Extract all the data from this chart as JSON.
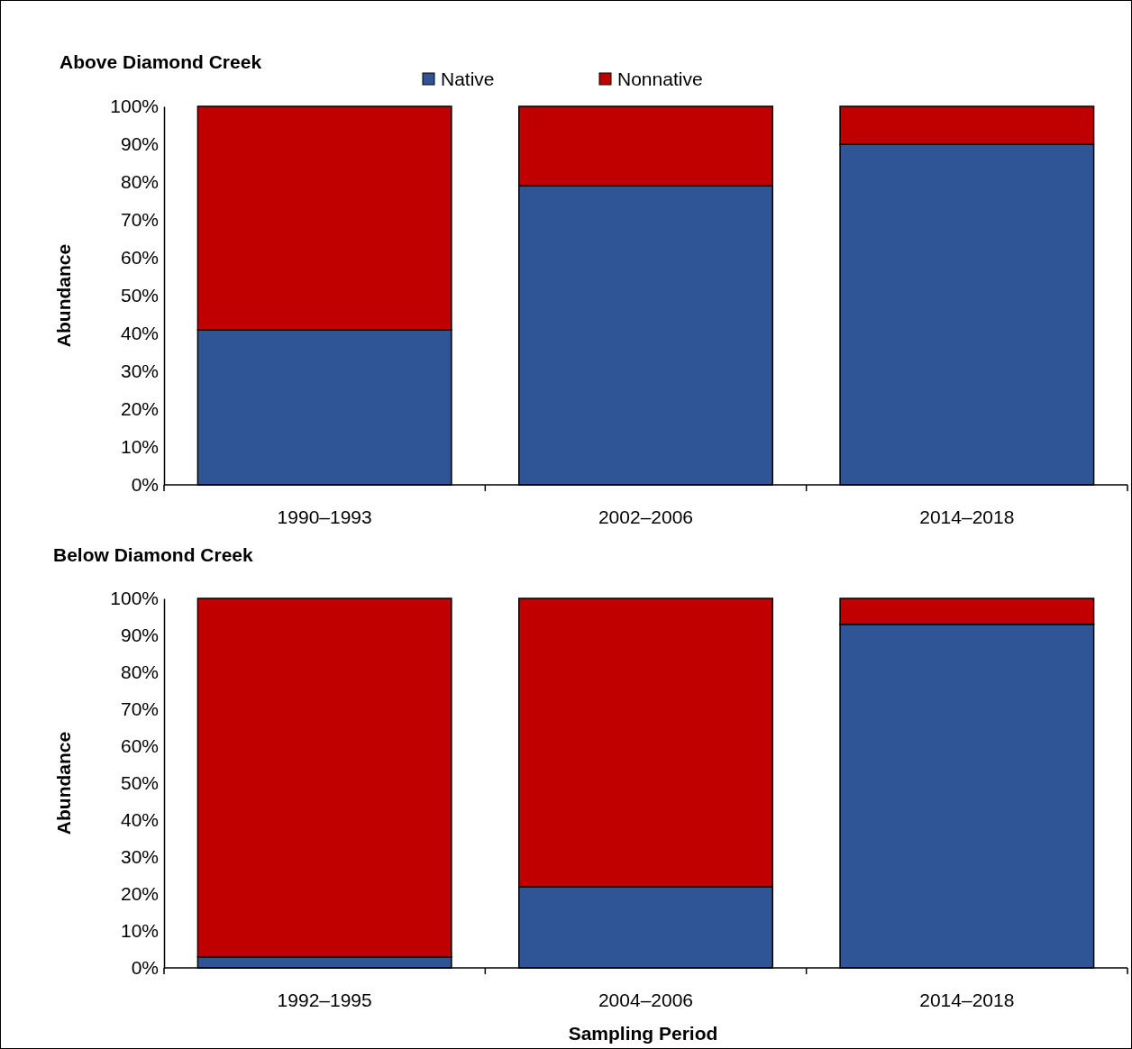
{
  "chart_data": [
    {
      "type": "bar",
      "title": "Above Diamond Creek",
      "ylabel": "Abundance",
      "categories": [
        "1990–1993",
        "2002–2006",
        "2014–2018"
      ],
      "stacked": true,
      "series": [
        {
          "name": "Native",
          "color": "#2f5597",
          "values": [
            41,
            79,
            90
          ]
        },
        {
          "name": "Nonnative",
          "color": "#c00000",
          "values": [
            59,
            21,
            10
          ]
        }
      ],
      "ylim": [
        0,
        100
      ],
      "yticks": [
        {
          "value": 0,
          "label": "0%"
        },
        {
          "value": 10,
          "label": "10%"
        },
        {
          "value": 20,
          "label": "20%"
        },
        {
          "value": 30,
          "label": "30%"
        },
        {
          "value": 40,
          "label": "40%"
        },
        {
          "value": 50,
          "label": "50%"
        },
        {
          "value": 60,
          "label": "60%"
        },
        {
          "value": 70,
          "label": "70%"
        },
        {
          "value": 80,
          "label": "80%"
        },
        {
          "value": 90,
          "label": "90%"
        },
        {
          "value": 100,
          "label": "100%"
        }
      ],
      "legend": "top"
    },
    {
      "type": "bar",
      "title": "Below Diamond Creek",
      "ylabel": "Abundance",
      "xlabel": "Sampling Period",
      "categories": [
        "1992–1995",
        "2004–2006",
        "2014–2018"
      ],
      "stacked": true,
      "series": [
        {
          "color": "#2f5597",
          "values": [
            3,
            22,
            93
          ]
        },
        {
          "color": "#c00000",
          "values": [
            97,
            78,
            7
          ]
        }
      ],
      "ylim": [
        0,
        100
      ],
      "yticks": [
        {
          "value": 0,
          "label": "0%"
        },
        {
          "value": 10,
          "label": "10%"
        },
        {
          "value": 20,
          "label": "20%"
        },
        {
          "value": 30,
          "label": "30%"
        },
        {
          "value": 40,
          "label": "40%"
        },
        {
          "value": 50,
          "label": "50%"
        },
        {
          "value": 60,
          "label": "60%"
        },
        {
          "value": 70,
          "label": "70%"
        },
        {
          "value": 80,
          "label": "80%"
        },
        {
          "value": 90,
          "label": "90%"
        },
        {
          "value": 100,
          "label": "100%"
        }
      ]
    }
  ]
}
